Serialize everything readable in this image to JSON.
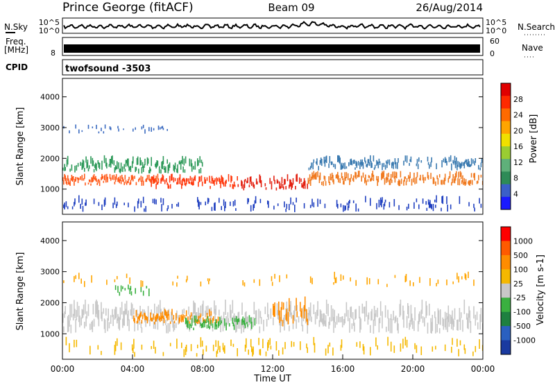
{
  "header": {
    "station": "Prince George (fitACF)",
    "beam": "Beam 09",
    "date": "26/Aug/2014"
  },
  "top_panels": {
    "nsky_label": "N.Sky",
    "nsearch_label": "N.Search",
    "noise_left_ticks": [
      "10^5",
      "10^0"
    ],
    "noise_right_ticks": [
      "10^5",
      "10^0"
    ],
    "freq_label": "Freq.",
    "freq_unit": "[MHz]",
    "freq_ticks": [
      "8"
    ],
    "nave_label": "Nave",
    "nave_ticks": [
      "60",
      "0"
    ],
    "cpid_label": "CPID",
    "cpid_value": "twofsound -3503"
  },
  "chart_data": [
    {
      "type": "heatmap",
      "quantity": "Power",
      "colorbar_label": "Power [dB]",
      "ylabel": "Slant Range [km]",
      "ylim": [
        180,
        4600
      ],
      "yticks": [
        1000,
        2000,
        3000,
        4000
      ],
      "colorbar_ticks": [
        "4",
        "8",
        "12",
        "16",
        "20",
        "24",
        "28"
      ],
      "colorbar_colors": [
        "#1a1aff",
        "#3b5fc8",
        "#2e8b57",
        "#5fb07a",
        "#9acd32",
        "#f0e000",
        "#ffa500",
        "#ff6a00",
        "#ff2a00",
        "#e00000"
      ],
      "bands": [
        {
          "t0": 0,
          "t1": 5.5,
          "r0": 1100,
          "r1": 1500,
          "color": "#ff5a1a",
          "density": 0.8
        },
        {
          "t0": 0,
          "t1": 8,
          "r0": 1500,
          "r1": 2100,
          "color": "#2f9a5a",
          "density": 0.7
        },
        {
          "t0": 5,
          "t1": 10,
          "r0": 1000,
          "r1": 1500,
          "color": "#ff3b10",
          "density": 0.75
        },
        {
          "t0": 10,
          "t1": 14,
          "r0": 950,
          "r1": 1500,
          "color": "#e32010",
          "density": 0.7
        },
        {
          "t0": 14,
          "t1": 24,
          "r0": 1100,
          "r1": 1600,
          "color": "#f07a20",
          "density": 0.7
        },
        {
          "t0": 14,
          "t1": 24,
          "r0": 1600,
          "r1": 2100,
          "color": "#3a7ab0",
          "density": 0.6
        },
        {
          "t0": 0,
          "t1": 24,
          "r0": 250,
          "r1": 800,
          "color": "#2040c0",
          "density": 0.25
        },
        {
          "t0": 0,
          "t1": 6,
          "r0": 2800,
          "r1": 3100,
          "color": "#3a6ac0",
          "density": 0.3
        }
      ]
    },
    {
      "type": "heatmap",
      "quantity": "Velocity",
      "colorbar_label": "Velocity [m s-1]",
      "xlabel": "Time UT",
      "ylabel": "Slant Range [km]",
      "ylim": [
        180,
        4600
      ],
      "yticks": [
        1000,
        2000,
        3000,
        4000
      ],
      "xticks": [
        "00:00",
        "04:00",
        "08:00",
        "12:00",
        "16:00",
        "20:00",
        "00:00"
      ],
      "colorbar_ticks": [
        "1000",
        "500",
        "100",
        "25",
        "-25",
        "-100",
        "-500",
        "-1000"
      ],
      "colorbar_colors": [
        "#1a3aa0",
        "#2a60c0",
        "#1e8040",
        "#3ab040",
        "#c8c8c8",
        "#f5b800",
        "#ff8c00",
        "#ff5a00",
        "#ff0000"
      ],
      "bands": [
        {
          "t0": 0,
          "t1": 24,
          "r0": 1000,
          "r1": 2100,
          "color": "#c8c8c8",
          "density": 0.7
        },
        {
          "t0": 4,
          "t1": 9,
          "r0": 1300,
          "r1": 1800,
          "color": "#ff8c00",
          "density": 0.65
        },
        {
          "t0": 7,
          "t1": 11,
          "r0": 1100,
          "r1": 1600,
          "color": "#3ab040",
          "density": 0.6
        },
        {
          "t0": 12,
          "t1": 14,
          "r0": 1200,
          "r1": 2200,
          "color": "#ff8c00",
          "density": 0.55
        },
        {
          "t0": 0,
          "t1": 24,
          "r0": 250,
          "r1": 900,
          "color": "#f5b800",
          "density": 0.2
        },
        {
          "t0": 3,
          "t1": 5,
          "r0": 2200,
          "r1": 2700,
          "color": "#3ab040",
          "density": 0.35
        },
        {
          "t0": 0,
          "t1": 24,
          "r0": 2500,
          "r1": 3000,
          "color": "#ffa500",
          "density": 0.12
        }
      ]
    }
  ]
}
